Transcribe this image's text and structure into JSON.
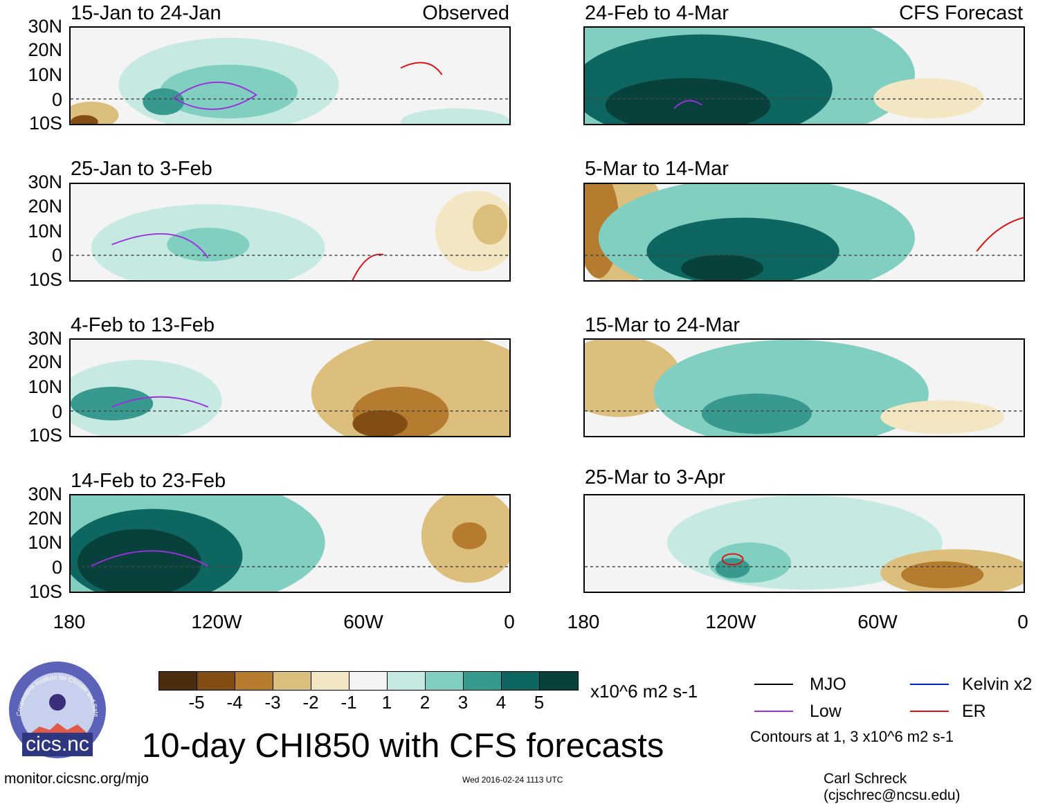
{
  "panels": {
    "left": [
      {
        "date": "15-Jan to 24-Jan",
        "label": "Observed"
      },
      {
        "date": "25-Jan to 3-Feb",
        "label": ""
      },
      {
        "date": "4-Feb to 13-Feb",
        "label": ""
      },
      {
        "date": "14-Feb to 23-Feb",
        "label": ""
      }
    ],
    "right": [
      {
        "date": "24-Feb to 4-Mar",
        "label": "CFS Forecast"
      },
      {
        "date": "5-Mar to 14-Mar",
        "label": ""
      },
      {
        "date": "15-Mar to 24-Mar",
        "label": ""
      },
      {
        "date": "25-Mar to 3-Apr",
        "label": ""
      }
    ]
  },
  "lat_labels": [
    "30N",
    "20N",
    "10N",
    "0",
    "10S"
  ],
  "lon_labels": [
    "180",
    "120W",
    "60W",
    "0"
  ],
  "colorbar": {
    "colors": [
      "#4a2f0e",
      "#824d13",
      "#b57b2e",
      "#dcbf7c",
      "#f3e6c2",
      "#f4f4f4",
      "#c6eae2",
      "#80cfc1",
      "#389a8f",
      "#0d6660",
      "#08413c"
    ],
    "ticks": [
      "-5",
      "-4",
      "-3",
      "-2",
      "-1",
      "1",
      "2",
      "3",
      "4",
      "5"
    ],
    "units": "x10^6 m2 s-1"
  },
  "title": "10-day CHI850 with CFS forecasts",
  "legend": {
    "items": [
      {
        "name": "MJO",
        "color": "#000000"
      },
      {
        "name": "Kelvin x2",
        "color": "#0022cc"
      },
      {
        "name": "Low",
        "color": "#9b30e0"
      },
      {
        "name": "ER",
        "color": "#dd1111"
      }
    ],
    "contours_note": "Contours at 1, 3 x10^6 m2 s-1"
  },
  "footer": {
    "url": "monitor.cicsnc.org/mjo",
    "timestamp": "Wed 2016-02-24 1113 UTC",
    "credit": "Carl Schreck (cjschrec@ncsu.edu)"
  },
  "logo": {
    "text": "cics.nc",
    "arc_text": "Cooperative Institute for Climate and Satellites"
  }
}
